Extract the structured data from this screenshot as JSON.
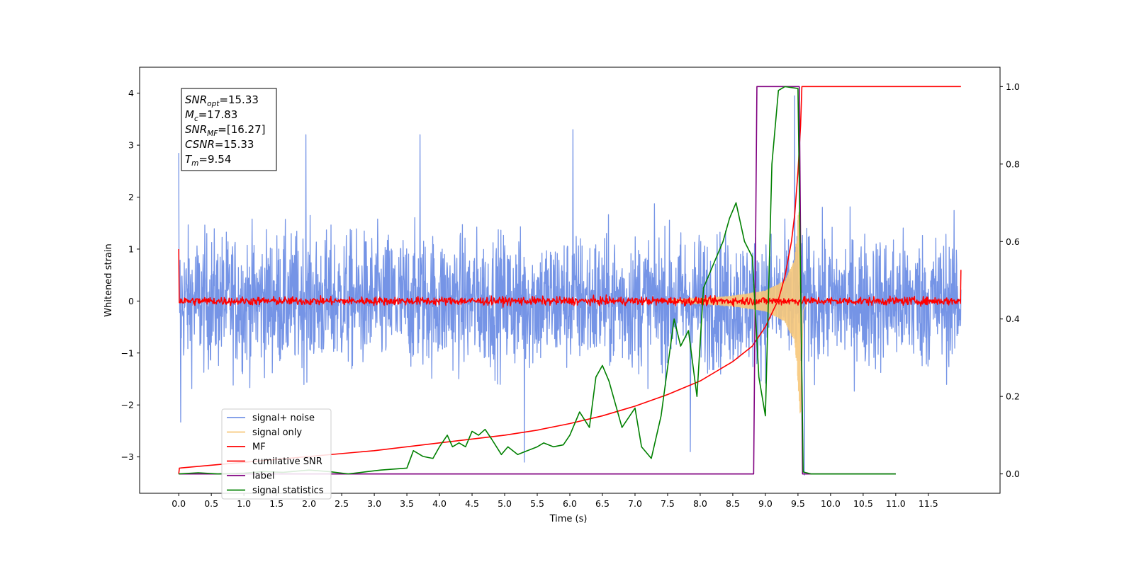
{
  "chart_data": {
    "type": "line",
    "xlabel": "Time (s)",
    "ylabel": "Whitened strain",
    "xlim": [
      -0.6,
      12.6
    ],
    "ylim": [
      -3.7,
      4.5
    ],
    "y2lim": [
      -0.05,
      1.05
    ],
    "x_ticks": [
      0.0,
      0.5,
      1.0,
      1.5,
      2.0,
      2.5,
      3.0,
      3.5,
      4.0,
      4.5,
      5.0,
      5.5,
      6.0,
      6.5,
      7.0,
      7.5,
      8.0,
      8.5,
      9.0,
      9.5,
      10.0,
      10.5,
      11.0,
      11.5
    ],
    "x_tick_labels": [
      "0.0",
      "0.5",
      "1.0",
      "1.5",
      "2.0",
      "2.5",
      "3.0",
      "3.5",
      "4.0",
      "4.5",
      "5.0",
      "5.5",
      "6.0",
      "6.5",
      "7.0",
      "7.5",
      "8.0",
      "8.5",
      "9.0",
      "9.5",
      "10.0",
      "10.5",
      "11.0",
      "11.5"
    ],
    "y_ticks": [
      -3,
      -2,
      -1,
      0,
      1,
      2,
      3,
      4
    ],
    "y_tick_labels": [
      "−3",
      "−2",
      "−1",
      "0",
      "1",
      "2",
      "3",
      "4"
    ],
    "y2_ticks": [
      0.0,
      0.2,
      0.4,
      0.6,
      0.8,
      1.0
    ],
    "y2_tick_labels": [
      "0.0",
      "0.2",
      "0.4",
      "0.6",
      "0.8",
      "1.0"
    ],
    "legend_position": "lower-left",
    "annotation": {
      "lines": [
        {
          "base": "SNR",
          "sub": "opt",
          "rest": "=15.33"
        },
        {
          "base": "M",
          "sub": "c",
          "rest": "=17.83"
        },
        {
          "base": "SNR",
          "sub": "MF",
          "rest": "=[16.27]"
        },
        {
          "base": "CSNR",
          "sub": "",
          "rest": "=15.33"
        },
        {
          "base": "T",
          "sub": "m",
          "rest": "=9.54"
        }
      ]
    },
    "series": [
      {
        "name": "signal+ noise",
        "color": "#7594e6",
        "axis": "left",
        "kind": "noise",
        "x_range": [
          0,
          12.0
        ],
        "typical_amplitude": 1.3,
        "peak_values": [
          [
            0.0,
            2.85
          ],
          [
            1.95,
            3.2
          ],
          [
            3.7,
            3.2
          ],
          [
            6.05,
            3.3
          ],
          [
            9.45,
            3.95
          ],
          [
            5.3,
            -3.1
          ],
          [
            9.6,
            -3.35
          ],
          [
            0.03,
            -2.33
          ],
          [
            7.85,
            -2.9
          ]
        ]
      },
      {
        "name": "signal only",
        "color": "#f7c87a",
        "axis": "left",
        "kind": "chirp",
        "merger_time": 9.54,
        "envelope": [
          [
            7.5,
            0.02
          ],
          [
            8.0,
            0.05
          ],
          [
            8.5,
            0.1
          ],
          [
            9.0,
            0.2
          ],
          [
            9.3,
            0.4
          ],
          [
            9.45,
            0.8
          ],
          [
            9.54,
            2.3
          ],
          [
            9.58,
            0.2
          ],
          [
            9.65,
            0.0
          ]
        ]
      },
      {
        "name": "MF",
        "color": "#ff0000",
        "axis": "left",
        "kind": "noise",
        "x_range": [
          0,
          12.0
        ],
        "typical_amplitude": 0.08,
        "peak_values": [
          [
            0.0,
            1.0
          ],
          [
            12.0,
            0.6
          ]
        ]
      },
      {
        "name": "cumilative SNR",
        "color": "#ff0000",
        "axis": "right",
        "points": [
          [
            0.0,
            0.0
          ],
          [
            0.01,
            0.015
          ],
          [
            1.0,
            0.03
          ],
          [
            2.0,
            0.045
          ],
          [
            3.0,
            0.06
          ],
          [
            4.0,
            0.08
          ],
          [
            5.0,
            0.1
          ],
          [
            5.5,
            0.113
          ],
          [
            6.0,
            0.13
          ],
          [
            6.5,
            0.15
          ],
          [
            7.0,
            0.175
          ],
          [
            7.5,
            0.205
          ],
          [
            8.0,
            0.24
          ],
          [
            8.5,
            0.29
          ],
          [
            8.8,
            0.33
          ],
          [
            9.0,
            0.38
          ],
          [
            9.2,
            0.45
          ],
          [
            9.3,
            0.51
          ],
          [
            9.4,
            0.6
          ],
          [
            9.45,
            0.67
          ],
          [
            9.5,
            0.78
          ],
          [
            9.54,
            0.9
          ],
          [
            9.56,
            1.0
          ],
          [
            12.0,
            1.0
          ]
        ]
      },
      {
        "name": "label",
        "color": "#800080",
        "axis": "right",
        "points": [
          [
            0.0,
            0.0
          ],
          [
            8.82,
            0.0
          ],
          [
            8.87,
            1.0
          ],
          [
            9.52,
            1.0
          ],
          [
            9.57,
            0.0
          ],
          [
            11.0,
            0.0
          ]
        ]
      },
      {
        "name": "signal statistics",
        "color": "#008000",
        "axis": "right",
        "points": [
          [
            0.0,
            0.0
          ],
          [
            0.3,
            0.003
          ],
          [
            0.6,
            0.0
          ],
          [
            1.0,
            0.002
          ],
          [
            1.3,
            0.006
          ],
          [
            1.6,
            0.004
          ],
          [
            2.0,
            0.01
          ],
          [
            2.3,
            0.006
          ],
          [
            2.6,
            0.0
          ],
          [
            2.9,
            0.006
          ],
          [
            3.1,
            0.01
          ],
          [
            3.5,
            0.015
          ],
          [
            3.6,
            0.06
          ],
          [
            3.75,
            0.045
          ],
          [
            3.9,
            0.04
          ],
          [
            4.0,
            0.07
          ],
          [
            4.12,
            0.1
          ],
          [
            4.2,
            0.07
          ],
          [
            4.3,
            0.08
          ],
          [
            4.4,
            0.07
          ],
          [
            4.5,
            0.11
          ],
          [
            4.6,
            0.1
          ],
          [
            4.7,
            0.115
          ],
          [
            4.8,
            0.09
          ],
          [
            4.95,
            0.05
          ],
          [
            5.05,
            0.07
          ],
          [
            5.2,
            0.05
          ],
          [
            5.35,
            0.06
          ],
          [
            5.5,
            0.07
          ],
          [
            5.6,
            0.08
          ],
          [
            5.75,
            0.07
          ],
          [
            5.9,
            0.075
          ],
          [
            6.0,
            0.1
          ],
          [
            6.15,
            0.16
          ],
          [
            6.3,
            0.12
          ],
          [
            6.4,
            0.25
          ],
          [
            6.5,
            0.28
          ],
          [
            6.6,
            0.24
          ],
          [
            6.8,
            0.12
          ],
          [
            7.0,
            0.17
          ],
          [
            7.1,
            0.07
          ],
          [
            7.25,
            0.04
          ],
          [
            7.4,
            0.15
          ],
          [
            7.6,
            0.4
          ],
          [
            7.7,
            0.33
          ],
          [
            7.82,
            0.37
          ],
          [
            7.95,
            0.2
          ],
          [
            8.05,
            0.48
          ],
          [
            8.2,
            0.54
          ],
          [
            8.35,
            0.6
          ],
          [
            8.45,
            0.66
          ],
          [
            8.55,
            0.7
          ],
          [
            8.68,
            0.6
          ],
          [
            8.8,
            0.56
          ],
          [
            8.9,
            0.25
          ],
          [
            9.0,
            0.15
          ],
          [
            9.1,
            0.8
          ],
          [
            9.2,
            0.99
          ],
          [
            9.3,
            1.0
          ],
          [
            9.5,
            0.995
          ],
          [
            9.58,
            0.005
          ],
          [
            9.7,
            0.0
          ],
          [
            11.0,
            0.0
          ]
        ]
      }
    ]
  }
}
